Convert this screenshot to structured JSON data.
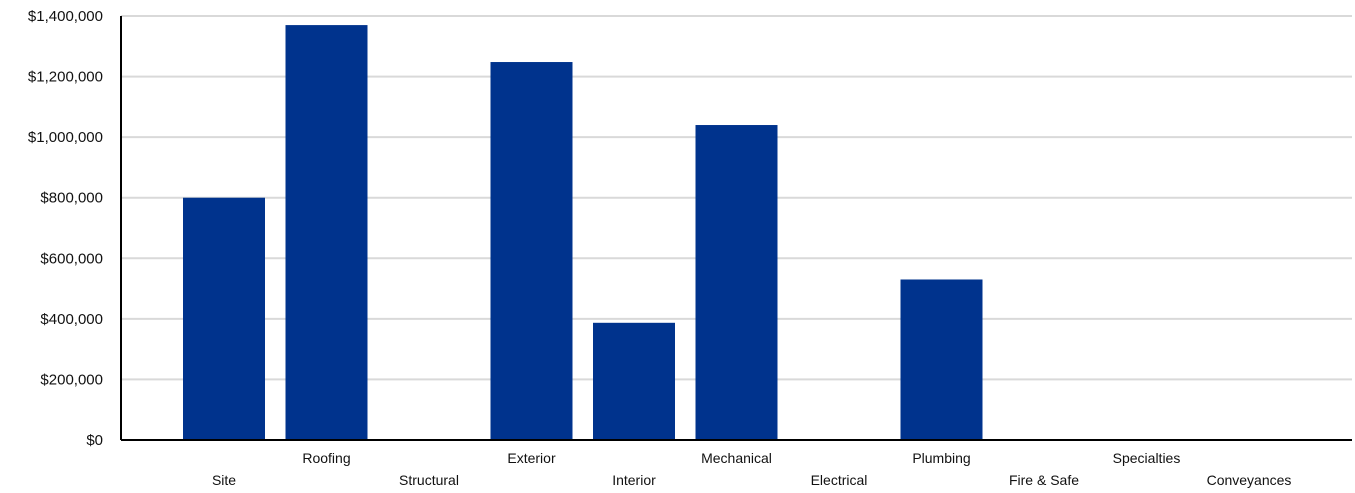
{
  "chart_data": {
    "type": "bar",
    "categories": [
      "Site",
      "Roofing",
      "Structural",
      "Exterior",
      "Interior",
      "Mechanical",
      "Electrical",
      "Plumbing",
      "Fire & Safe",
      "Specialties",
      "Conveyances"
    ],
    "values": [
      800000,
      1370000,
      0,
      1248000,
      387000,
      1040000,
      0,
      530000,
      0,
      0,
      0
    ],
    "ylim": [
      0,
      1400000
    ],
    "yticks": [
      0,
      200000,
      400000,
      600000,
      800000,
      1000000,
      1200000,
      1400000
    ],
    "ytick_labels": [
      "$0",
      "$200,000",
      "$400,000",
      "$600,000",
      "$800,000",
      "$1,000,000",
      "$1,200,000",
      "$1,400,000"
    ],
    "bar_color": "#00338D",
    "grid": true,
    "legend": "none"
  }
}
